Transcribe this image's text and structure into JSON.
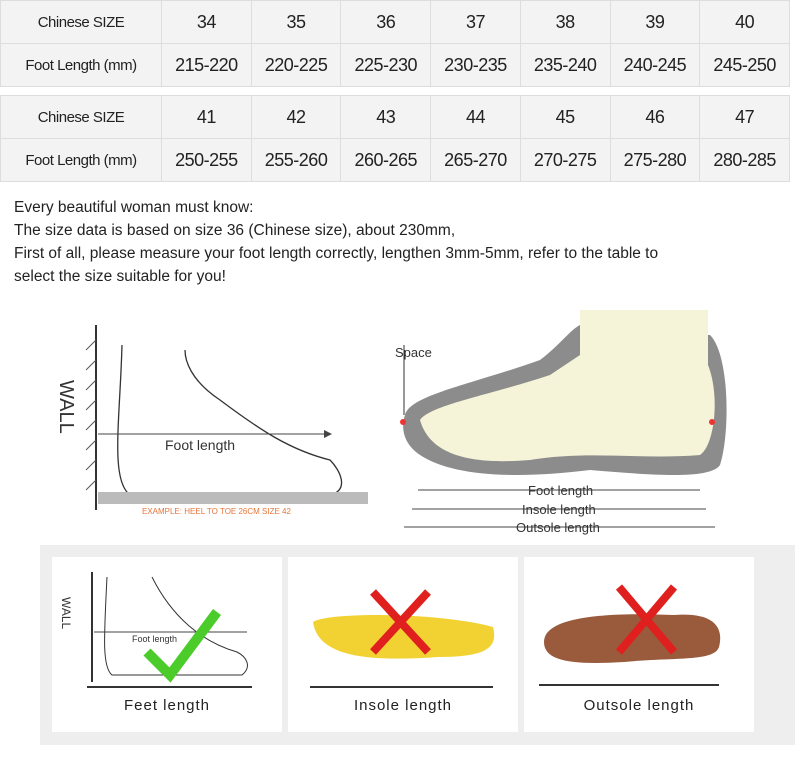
{
  "tables": [
    {
      "size_label": "Chinese SIZE",
      "length_label": "Foot Length (mm)",
      "sizes": [
        "34",
        "35",
        "36",
        "37",
        "38",
        "39",
        "40"
      ],
      "lengths": [
        "215-220",
        "220-225",
        "225-230",
        "230-235",
        "235-240",
        "240-245",
        "245-250"
      ]
    },
    {
      "size_label": "Chinese SIZE",
      "length_label": "Foot Length (mm)",
      "sizes": [
        "41",
        "42",
        "43",
        "44",
        "45",
        "46",
        "47"
      ],
      "lengths": [
        "250-255",
        "255-260",
        "260-265",
        "265-270",
        "270-275",
        "275-280",
        "280-285"
      ]
    }
  ],
  "text": [
    "Every beautiful woman must know:",
    "The size data is based on size 36 (Chinese size), about 230mm,",
    "First of all, please measure your foot length correctly, lengthen 3mm-5mm, refer to the table to",
    "select the size suitable for you!"
  ],
  "diagram_left": {
    "wall": "WALL",
    "foot_length": "Foot length",
    "example": "EXAMPLE: HEEL TO TOE 26CM SIZE 42"
  },
  "diagram_right": {
    "space": "Space",
    "foot_length": "Foot length",
    "insole_length": "Insole length",
    "outsole_length": "Outsole length"
  },
  "cards": [
    {
      "wall": "WALL",
      "foot": "Foot length",
      "caption": "Feet length",
      "mark": "check"
    },
    {
      "caption": "Insole length",
      "mark": "cross"
    },
    {
      "caption": "Outsole length",
      "mark": "cross"
    }
  ],
  "colors": {
    "check": "#4ccc2a",
    "cross": "#e0201e",
    "insole": "#f2d233",
    "outsole": "#9a5a3c",
    "example": "#e8743a"
  }
}
